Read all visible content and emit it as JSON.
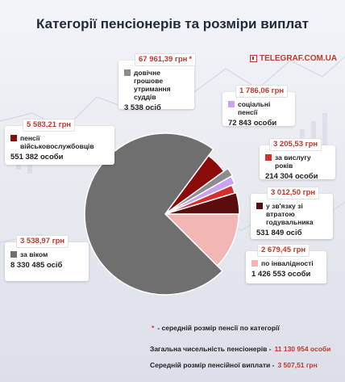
{
  "title": "Категорії пенсіонерів та розміри виплат",
  "brand": "TELEGRAF.COM.UA",
  "chart_data": {
    "type": "pie",
    "unit": "осіб",
    "slices": [
      {
        "key": "military",
        "label": "пенсії військовослужбовців",
        "amount": "5 583,21 грн",
        "count": "551 382 особи",
        "value": 551382,
        "color": "#8b0a0a"
      },
      {
        "key": "judges",
        "label": "довічне грошове утримання суддів",
        "amount": "67 961,39 грн",
        "count": "3 538 осіб",
        "value": 3538,
        "color": "#8c8c8c"
      },
      {
        "key": "social",
        "label": "соціальні пенсії",
        "amount": "1 786,06 грн",
        "count": "72 843 особи",
        "value": 72843,
        "color": "#c9a2f0"
      },
      {
        "key": "service",
        "label": "за вислугу років",
        "amount": "3 205,53 грн",
        "count": "214 304 особи",
        "value": 214304,
        "color": "#d32f2f"
      },
      {
        "key": "breadwinner",
        "label": "у зв'язку зі втратою годувальника",
        "amount": "3 012,50 грн",
        "count": "531 849 осіб",
        "value": 531849,
        "color": "#5b0d0d"
      },
      {
        "key": "disability",
        "label": "по інвалідності",
        "amount": "2 679,45 грн",
        "count": "1 426 553 особи",
        "value": 1426553,
        "color": "#f2b7b5"
      },
      {
        "key": "age",
        "label": "за віком",
        "amount": "3 538,97 грн",
        "count": "8 330 485 осіб",
        "value": 8330485,
        "color": "#6f6f6f"
      }
    ]
  },
  "footnote": {
    "star": "*",
    "text": "- середній розмір пенсії по категорії"
  },
  "totals": {
    "count_label": "Загальна чисельність пенсіонерів  -",
    "count_value": "11 130 954 особи",
    "avg_label": "Середній розмір пенсійної виплати -",
    "avg_value": "3 507,51 грн"
  }
}
